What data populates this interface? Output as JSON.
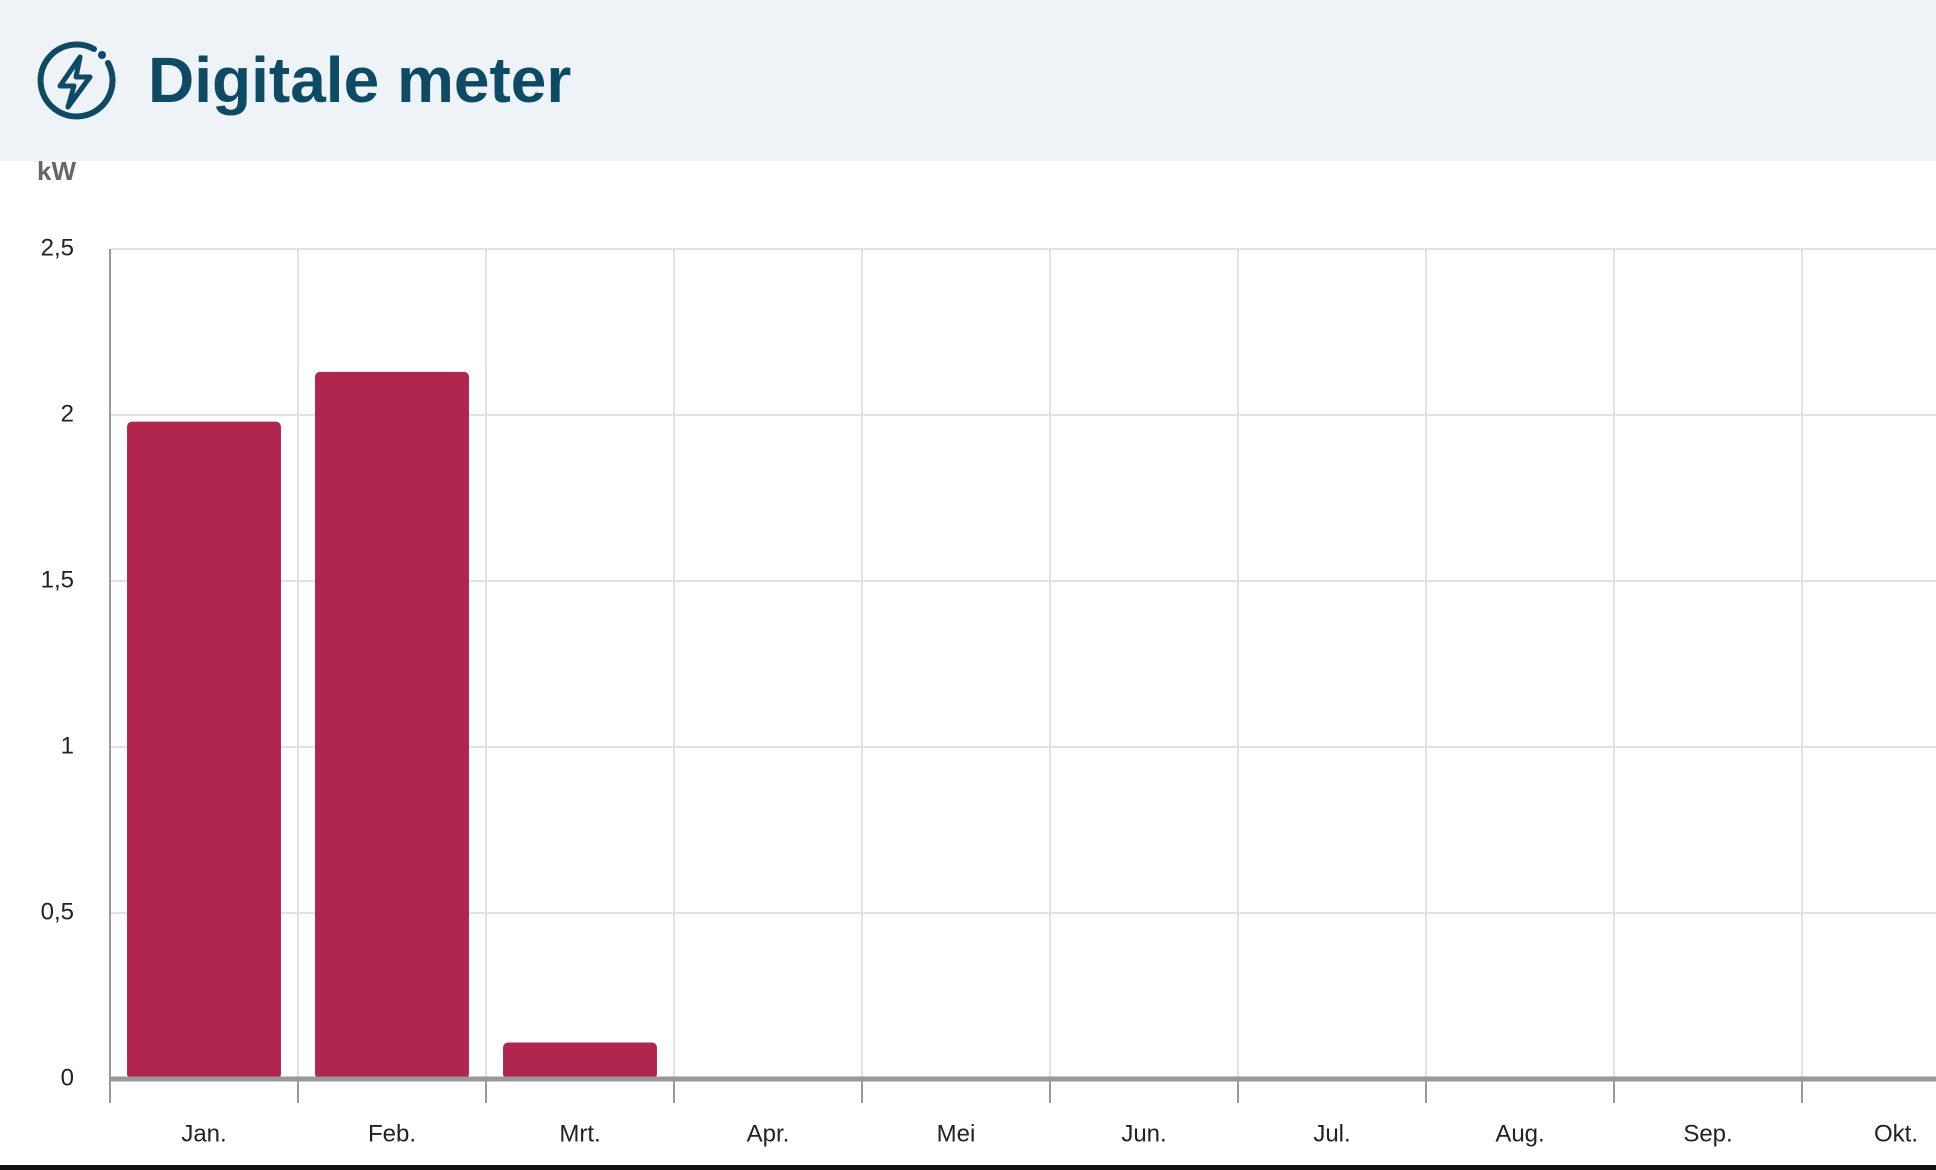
{
  "header": {
    "title": "Digitale meter"
  },
  "chart_data": {
    "type": "bar",
    "y_label": "kW",
    "categories": [
      "Jan.",
      "Feb.",
      "Mrt.",
      "Apr.",
      "Mei",
      "Jun.",
      "Jul.",
      "Aug.",
      "Sep.",
      "Okt."
    ],
    "values": [
      1.98,
      2.13,
      0.11,
      null,
      null,
      null,
      null,
      null,
      null,
      null
    ],
    "color": "#b0264f",
    "ylim": [
      0,
      2.5
    ],
    "yticks": [
      0,
      {
        "value": 0.5,
        "label": "0,5"
      },
      1,
      {
        "value": 1.5,
        "label": "1,5"
      },
      2,
      {
        "value": 2.5,
        "label": "2,5"
      }
    ],
    "grid": true
  }
}
